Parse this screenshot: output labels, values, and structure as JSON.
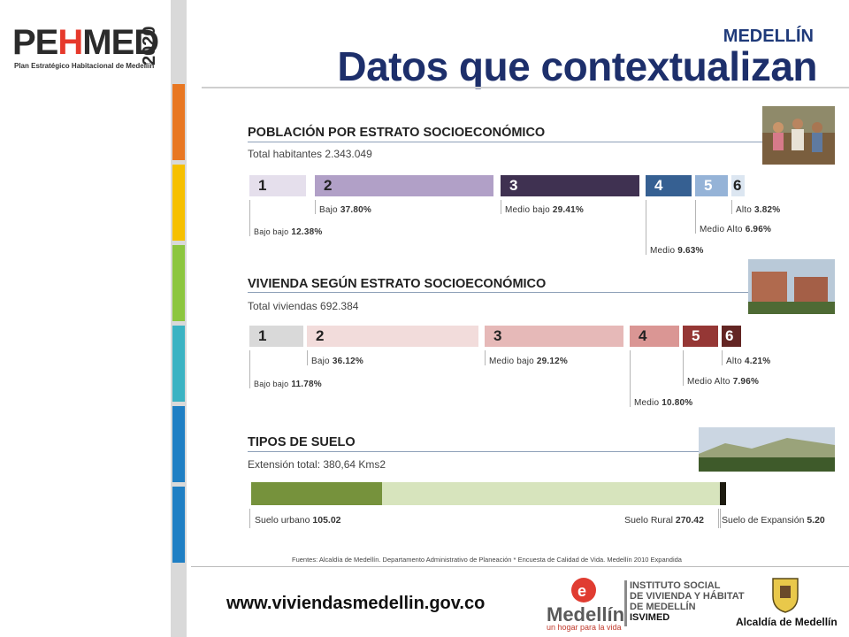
{
  "logo": {
    "name_a": "PE",
    "name_h": "H",
    "name_b": "MED",
    "year": "2020",
    "subtitle": "Plan Estratégico Habitacional de Medellín"
  },
  "header": {
    "city": "MEDELLÍN",
    "title": "Datos que contextualizan"
  },
  "section_population": {
    "title": "POBLACIÓN POR ESTRATO SOCIOECONÓMICO",
    "subtitle": "Total habitantes  2.343.049",
    "bars": [
      {
        "num": "1",
        "name": "Bajo bajo",
        "value": "12.38%",
        "share": 12.38,
        "color": "#e5dfec"
      },
      {
        "num": "2",
        "name": "Bajo",
        "value": "37.80%",
        "share": 37.8,
        "color": "#b1a0c7"
      },
      {
        "num": "3",
        "name": "Medio bajo",
        "value": "29.41%",
        "share": 29.41,
        "color": "#3f3151"
      },
      {
        "num": "4",
        "name": "Medio",
        "value": "9.63%",
        "share": 9.63,
        "color": "#366092"
      },
      {
        "num": "5",
        "name": "Medio Alto",
        "value": "6.96%",
        "share": 6.96,
        "color": "#95b3d7"
      },
      {
        "num": "6",
        "name": "Alto",
        "value": "3.82%",
        "share": 3.82,
        "color": "#dce6f1"
      }
    ]
  },
  "section_housing": {
    "title": "VIVIENDA SEGÚN ESTRATO SOCIOECONÓMICO",
    "subtitle": "Total viviendas 692.384",
    "bars": [
      {
        "num": "1",
        "name": "Bajo bajo",
        "value": "11.78%",
        "share": 11.78,
        "color": "#d9d9d9"
      },
      {
        "num": "2",
        "name": "Bajo",
        "value": "36.12%",
        "share": 36.12,
        "color": "#f2dcdb"
      },
      {
        "num": "3",
        "name": "Medio bajo",
        "value": "29.12%",
        "share": 29.12,
        "color": "#e6b9b8"
      },
      {
        "num": "4",
        "name": "Medio",
        "value": "10.80%",
        "share": 10.8,
        "color": "#da9694"
      },
      {
        "num": "5",
        "name": "Medio Alto",
        "value": "7.96%",
        "share": 7.96,
        "color": "#953735"
      },
      {
        "num": "6",
        "name": "Alto",
        "value": "4.21%",
        "share": 4.21,
        "color": "#632523"
      }
    ]
  },
  "section_soil": {
    "title": "TIPOS DE SUELO",
    "subtitle": "Extensión total: 380,64 Kms2",
    "bars": [
      {
        "name": "Suelo urbano",
        "value": "105.02",
        "share": 105.02,
        "color": "#76923c"
      },
      {
        "name": "Suelo Rural",
        "value": "270.42",
        "share": 270.42,
        "color": "#d7e4bd"
      },
      {
        "name": "Suelo de Expansión",
        "value": "5.20",
        "share": 5.2,
        "color": "#1d1b10"
      }
    ]
  },
  "footer": {
    "source": "Fuentes: Alcaldía de Medellín. Departamento Administrativo de Planeación * Encuesta de Calidad de Vida. Medellín 2010 Expandida",
    "url": "www.viviendasmedellin.gov.co",
    "medellin_logo_text": "Medellín",
    "medellin_tagline": "un hogar para la vida",
    "isvimed_lines": [
      "INSTITUTO SOCIAL",
      "DE VIVIENDA Y HÁBITAT",
      "DE MEDELLÍN",
      "ISVIMED"
    ],
    "alcaldia": "Alcaldía de Medellín"
  },
  "decor": {
    "strip_colors": [
      "#e87722",
      "#f6c000",
      "#8cc63f",
      "#3bb3c3",
      "#1f7fc4"
    ]
  }
}
